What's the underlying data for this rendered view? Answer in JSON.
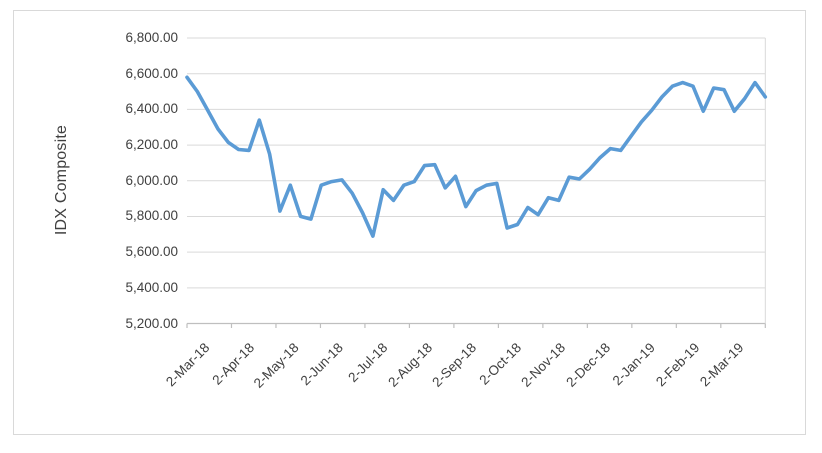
{
  "chart_data": {
    "type": "line",
    "title": "",
    "xlabel": "",
    "ylabel": "IDX Composite",
    "ylim": [
      5200,
      6800
    ],
    "y_tick_step": 200,
    "grid": true,
    "legend": false,
    "line_color": "#5B9BD5",
    "grid_color": "#d9d9d9",
    "axis_color": "#bfbfbf",
    "label_color": "#404040",
    "y_tick_labels": [
      "6,800.00",
      "6,600.00",
      "6,400.00",
      "6,200.00",
      "6,000.00",
      "5,800.00",
      "5,600.00",
      "5,400.00",
      "5,200.00"
    ],
    "x_tick_labels": [
      "2-Mar-18",
      "2-Apr-18",
      "2-May-18",
      "2-Jun-18",
      "2-Jul-18",
      "2-Aug-18",
      "2-Sep-18",
      "2-Oct-18",
      "2-Nov-18",
      "2-Dec-18",
      "2-Jan-19",
      "2-Feb-19",
      "2-Mar-19"
    ],
    "x_frequency": "weekly",
    "series": [
      {
        "name": "IDX Composite",
        "values": [
          6580,
          6500,
          6395,
          6290,
          6215,
          6175,
          6170,
          6340,
          6150,
          5830,
          5975,
          5800,
          5785,
          5975,
          5995,
          6005,
          5930,
          5820,
          5690,
          5950,
          5890,
          5975,
          5995,
          6085,
          6090,
          5960,
          6025,
          5855,
          5945,
          5975,
          5985,
          5735,
          5755,
          5850,
          5810,
          5905,
          5890,
          6020,
          6010,
          6065,
          6130,
          6180,
          6170,
          6250,
          6330,
          6395,
          6470,
          6530,
          6550,
          6530,
          6390,
          6520,
          6510,
          6390,
          6460,
          6550,
          6470
        ]
      }
    ]
  }
}
